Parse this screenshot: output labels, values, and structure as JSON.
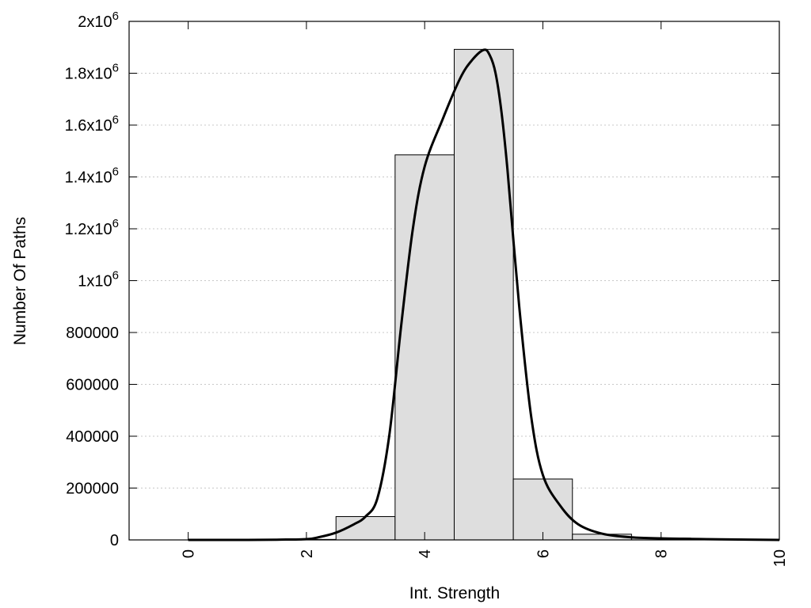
{
  "chart_data": {
    "type": "bar",
    "xlabel": "Int. Strength",
    "ylabel": "Number Of Paths",
    "xlim": [
      -1,
      10
    ],
    "ylim": [
      0,
      2000000
    ],
    "x_ticks": [
      {
        "value": 0,
        "label": "0"
      },
      {
        "value": 2,
        "label": "2"
      },
      {
        "value": 4,
        "label": "4"
      },
      {
        "value": 6,
        "label": "6"
      },
      {
        "value": 8,
        "label": "8"
      },
      {
        "value": 10,
        "label": "10"
      }
    ],
    "y_ticks": [
      {
        "value": 0,
        "label": "0"
      },
      {
        "value": 200000,
        "label": "200000"
      },
      {
        "value": 400000,
        "label": "400000"
      },
      {
        "value": 600000,
        "label": "600000"
      },
      {
        "value": 800000,
        "label": "800000"
      },
      {
        "value": 1000000,
        "mantissa": "1",
        "exponent": "6"
      },
      {
        "value": 1200000,
        "mantissa": "1.2",
        "exponent": "6"
      },
      {
        "value": 1400000,
        "mantissa": "1.4",
        "exponent": "6"
      },
      {
        "value": 1600000,
        "mantissa": "1.6",
        "exponent": "6"
      },
      {
        "value": 1800000,
        "mantissa": "1.8",
        "exponent": "6"
      },
      {
        "value": 2000000,
        "mantissa": "2",
        "exponent": "6"
      }
    ],
    "y_label_multiplier": "x10",
    "grid": "horizontal dotted",
    "series": [
      {
        "kind": "histogram",
        "bin_width": 1,
        "x": [
          0,
          1,
          2,
          3,
          4,
          5,
          6,
          7,
          8,
          9
        ],
        "values": [
          0,
          0,
          2000,
          90000,
          1485000,
          1892000,
          235000,
          22000,
          7000,
          2000
        ],
        "fill": "#dedede"
      },
      {
        "kind": "line",
        "color": "#000000",
        "x": [
          0,
          0.5,
          1,
          1.5,
          2,
          2.2,
          2.5,
          2.8,
          3.0,
          3.2,
          3.4,
          3.6,
          3.8,
          4.0,
          4.3,
          4.6,
          4.8,
          5.0,
          5.1,
          5.2,
          5.3,
          5.4,
          5.6,
          5.8,
          6.0,
          6.3,
          6.6,
          7.0,
          7.5,
          8.0,
          8.5,
          9.0,
          10.0
        ],
        "y": [
          0,
          0,
          0,
          1000,
          3000,
          10000,
          28000,
          60000,
          90000,
          160000,
          400000,
          820000,
          1200000,
          1440000,
          1620000,
          1780000,
          1850000,
          1890000,
          1870000,
          1800000,
          1650000,
          1430000,
          900000,
          480000,
          250000,
          130000,
          60000,
          24000,
          10000,
          6000,
          4000,
          2000,
          0
        ]
      }
    ]
  }
}
